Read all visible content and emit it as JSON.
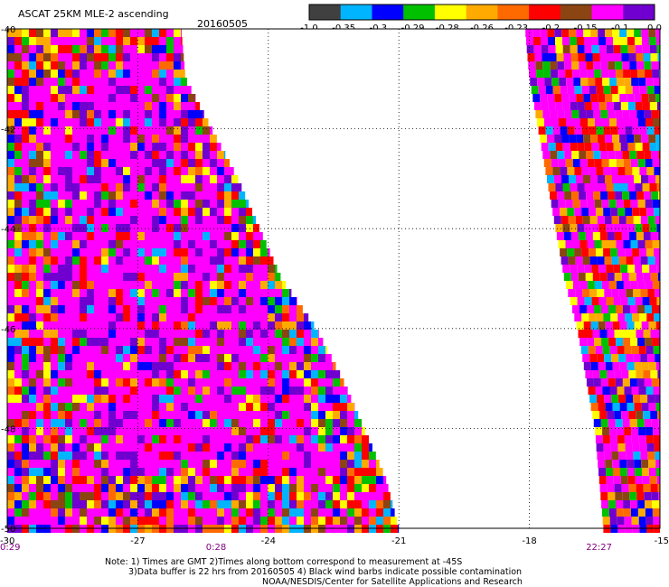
{
  "chart_data": {
    "type": "heatmap",
    "title": "ASCAT 25KM MLE-2 ascending",
    "date": "20160505",
    "x_ticks": [
      "-30",
      "-27",
      "-24",
      "-21",
      "-18",
      "-15"
    ],
    "y_ticks": [
      "-40",
      "-42",
      "-44",
      "-46",
      "-48",
      "-50"
    ],
    "xlim": [
      -30,
      -15
    ],
    "ylim": [
      -50,
      -40
    ],
    "grid": true,
    "colorbar": {
      "ticks": [
        "-1.0",
        "-0.35",
        "-0.3",
        "-0.29",
        "-0.28",
        "-0.26",
        "-0.23",
        "-0.2",
        "-0.15",
        "-0.1",
        "0.0"
      ],
      "colors": [
        "#404040",
        "#00b4ff",
        "#0000ff",
        "#00c000",
        "#ffff00",
        "#ffaa00",
        "#ff6a00",
        "#ff0000",
        "#8b4513",
        "#ff00ff",
        "#7000d0"
      ]
    },
    "swaths": [
      {
        "name": "swath-1",
        "lon_range": [
          -30,
          -21
        ],
        "lat_range": [
          -50,
          -40
        ],
        "shape": "triangular",
        "edge": [
          [
            -40,
            -26
          ],
          [
            -41,
            -25.9
          ],
          [
            -42,
            -25.3
          ],
          [
            -43,
            -24.7
          ],
          [
            -44,
            -24.2
          ],
          [
            -45,
            -23.7
          ],
          [
            -46,
            -22.9
          ],
          [
            -47,
            -22.3
          ],
          [
            -48,
            -21.8
          ],
          [
            -49,
            -21.3
          ],
          [
            -50,
            -21.0
          ]
        ]
      },
      {
        "name": "swath-2",
        "lon_range": [
          -18.1,
          -15
        ],
        "lat_range": [
          -50,
          -40
        ],
        "shape": "band",
        "edge": [
          [
            -40,
            -18.1
          ],
          [
            -41,
            -18.0
          ],
          [
            -42,
            -17.8
          ],
          [
            -43,
            -17.6
          ],
          [
            -44,
            -17.4
          ],
          [
            -45,
            -17.2
          ],
          [
            -46,
            -16.9
          ],
          [
            -47,
            -16.7
          ],
          [
            -48,
            -16.5
          ],
          [
            -49,
            -16.4
          ],
          [
            -50,
            -16.3
          ]
        ]
      }
    ],
    "time_labels": [
      {
        "text": "0:29",
        "lon": -30
      },
      {
        "text": "0:28",
        "lon": -25.2
      },
      {
        "text": "22:27",
        "lon": -16.4
      }
    ]
  },
  "notes": {
    "line1": "Note: 1) Times are GMT 2)Times along bottom correspond to measurement at -45S",
    "line2": "3)Data buffer is 22 hrs from 20160505 4) Black wind barbs indicate possible contamination",
    "line3": "NOAA/NESDIS/Center for Satellite Applications and Research"
  }
}
